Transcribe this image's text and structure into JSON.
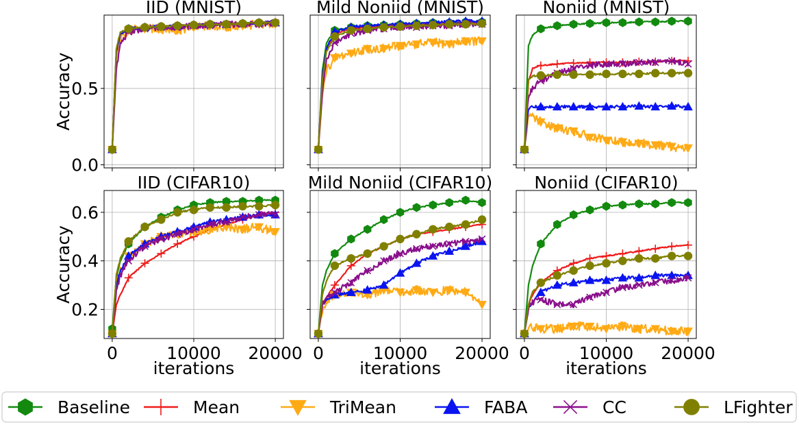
{
  "figure": {
    "legend": [
      {
        "name": "Baseline",
        "color": "#138a0f",
        "marker": "hexagon"
      },
      {
        "name": "Mean",
        "color": "#ee1b1b",
        "marker": "plus"
      },
      {
        "name": "TriMean",
        "color": "#ffaa15",
        "marker": "triangle-down"
      },
      {
        "name": "FABA",
        "color": "#0a14f0",
        "marker": "triangle-up"
      },
      {
        "name": "CC",
        "color": "#8a0f8c",
        "marker": "x"
      },
      {
        "name": "LFighter",
        "color": "#808000",
        "marker": "circle"
      }
    ]
  },
  "chart_data": [
    {
      "type": "line",
      "title": "IID (MNIST)",
      "xlabel": "",
      "ylabel": "Accuracy",
      "xlim": [
        -1000,
        21000
      ],
      "ylim": [
        -0.02,
        0.98
      ],
      "xticks": [
        0,
        10000,
        20000
      ],
      "xticklabels": [
        "",
        "",
        ""
      ],
      "yticks": [
        0.0,
        0.5
      ],
      "yticklabels": [
        "0.0",
        "0.5"
      ],
      "x": [
        0,
        500,
        1000,
        2000,
        4000,
        6000,
        8000,
        10000,
        12000,
        14000,
        16000,
        18000,
        20000
      ],
      "series": [
        {
          "name": "Baseline",
          "values": [
            0.1,
            0.75,
            0.86,
            0.89,
            0.9,
            0.905,
            0.91,
            0.915,
            0.92,
            0.92,
            0.925,
            0.93,
            0.93
          ]
        },
        {
          "name": "Mean",
          "values": [
            0.1,
            0.74,
            0.85,
            0.89,
            0.9,
            0.905,
            0.91,
            0.915,
            0.92,
            0.92,
            0.925,
            0.925,
            0.93
          ]
        },
        {
          "name": "TriMean",
          "values": [
            0.1,
            0.7,
            0.83,
            0.88,
            0.89,
            0.89,
            0.88,
            0.9,
            0.91,
            0.9,
            0.91,
            0.92,
            0.92
          ]
        },
        {
          "name": "FABA",
          "values": [
            0.1,
            0.74,
            0.85,
            0.89,
            0.9,
            0.905,
            0.91,
            0.915,
            0.92,
            0.92,
            0.925,
            0.93,
            0.93
          ]
        },
        {
          "name": "CC",
          "values": [
            0.1,
            0.62,
            0.79,
            0.87,
            0.89,
            0.9,
            0.9,
            0.91,
            0.91,
            0.92,
            0.92,
            0.92,
            0.93
          ]
        },
        {
          "name": "LFighter",
          "values": [
            0.1,
            0.76,
            0.87,
            0.89,
            0.9,
            0.905,
            0.91,
            0.915,
            0.92,
            0.92,
            0.925,
            0.93,
            0.93
          ]
        }
      ]
    },
    {
      "type": "line",
      "title": "Mild Noniid (MNIST)",
      "xlabel": "",
      "ylabel": "",
      "xlim": [
        -1000,
        21000
      ],
      "ylim": [
        -0.02,
        0.98
      ],
      "xticks": [
        0,
        10000,
        20000
      ],
      "xticklabels": [
        "",
        "",
        ""
      ],
      "yticks": [
        0.0,
        0.5
      ],
      "yticklabels": [
        "",
        ""
      ],
      "x": [
        0,
        500,
        1000,
        2000,
        4000,
        6000,
        8000,
        10000,
        12000,
        14000,
        16000,
        18000,
        20000
      ],
      "series": [
        {
          "name": "Baseline",
          "values": [
            0.1,
            0.62,
            0.8,
            0.88,
            0.9,
            0.91,
            0.915,
            0.92,
            0.925,
            0.93,
            0.93,
            0.935,
            0.935
          ]
        },
        {
          "name": "Mean",
          "values": [
            0.1,
            0.58,
            0.76,
            0.86,
            0.89,
            0.9,
            0.905,
            0.91,
            0.915,
            0.92,
            0.92,
            0.925,
            0.93
          ]
        },
        {
          "name": "TriMean",
          "values": [
            0.1,
            0.45,
            0.62,
            0.7,
            0.73,
            0.76,
            0.76,
            0.78,
            0.79,
            0.8,
            0.79,
            0.81,
            0.81
          ]
        },
        {
          "name": "FABA",
          "values": [
            0.1,
            0.58,
            0.76,
            0.87,
            0.9,
            0.91,
            0.915,
            0.92,
            0.925,
            0.93,
            0.935,
            0.94,
            0.94
          ]
        },
        {
          "name": "CC",
          "values": [
            0.1,
            0.48,
            0.68,
            0.8,
            0.86,
            0.88,
            0.89,
            0.9,
            0.9,
            0.91,
            0.91,
            0.92,
            0.92
          ]
        },
        {
          "name": "LFighter",
          "values": [
            0.1,
            0.56,
            0.74,
            0.84,
            0.88,
            0.89,
            0.9,
            0.905,
            0.91,
            0.915,
            0.92,
            0.92,
            0.925
          ]
        }
      ]
    },
    {
      "type": "line",
      "title": "Noniid (MNIST)",
      "xlabel": "",
      "ylabel": "",
      "xlim": [
        -1000,
        21000
      ],
      "ylim": [
        -0.02,
        0.98
      ],
      "xticks": [
        0,
        10000,
        20000
      ],
      "xticklabels": [
        "",
        "",
        ""
      ],
      "yticks": [
        0.0,
        0.5
      ],
      "yticklabels": [
        "",
        ""
      ],
      "x": [
        0,
        500,
        1000,
        2000,
        4000,
        6000,
        8000,
        10000,
        12000,
        14000,
        16000,
        18000,
        20000
      ],
      "series": [
        {
          "name": "Baseline",
          "values": [
            0.1,
            0.78,
            0.85,
            0.89,
            0.91,
            0.92,
            0.925,
            0.93,
            0.93,
            0.935,
            0.935,
            0.94,
            0.94
          ]
        },
        {
          "name": "Mean",
          "values": [
            0.1,
            0.55,
            0.63,
            0.65,
            0.66,
            0.665,
            0.67,
            0.67,
            0.67,
            0.675,
            0.675,
            0.68,
            0.68
          ]
        },
        {
          "name": "TriMean",
          "values": [
            0.1,
            0.3,
            0.32,
            0.28,
            0.24,
            0.22,
            0.18,
            0.16,
            0.15,
            0.14,
            0.13,
            0.12,
            0.11
          ]
        },
        {
          "name": "FABA",
          "values": [
            0.1,
            0.37,
            0.38,
            0.38,
            0.38,
            0.38,
            0.38,
            0.38,
            0.38,
            0.385,
            0.38,
            0.385,
            0.38
          ]
        },
        {
          "name": "CC",
          "values": [
            0.1,
            0.45,
            0.5,
            0.55,
            0.6,
            0.63,
            0.65,
            0.66,
            0.66,
            0.67,
            0.67,
            0.68,
            0.66
          ]
        },
        {
          "name": "LFighter",
          "values": [
            0.1,
            0.56,
            0.58,
            0.585,
            0.59,
            0.59,
            0.59,
            0.595,
            0.595,
            0.595,
            0.6,
            0.6,
            0.6
          ]
        }
      ]
    },
    {
      "type": "line",
      "title": "IID (CIFAR10)",
      "xlabel": "iterations",
      "ylabel": "Accuracy",
      "xlim": [
        -1000,
        21000
      ],
      "ylim": [
        0.08,
        0.69
      ],
      "xticks": [
        0,
        10000,
        20000
      ],
      "xticklabels": [
        "0",
        "10000",
        "20000"
      ],
      "yticks": [
        0.2,
        0.4,
        0.6
      ],
      "yticklabels": [
        "0.2",
        "0.4",
        "0.6"
      ],
      "x": [
        0,
        500,
        1000,
        2000,
        4000,
        6000,
        8000,
        10000,
        12000,
        14000,
        16000,
        18000,
        20000
      ],
      "series": [
        {
          "name": "Baseline",
          "values": [
            0.12,
            0.33,
            0.4,
            0.47,
            0.54,
            0.58,
            0.61,
            0.63,
            0.64,
            0.645,
            0.645,
            0.65,
            0.65
          ]
        },
        {
          "name": "Mean",
          "values": [
            0.1,
            0.22,
            0.26,
            0.33,
            0.39,
            0.43,
            0.47,
            0.5,
            0.53,
            0.55,
            0.57,
            0.59,
            0.6
          ]
        },
        {
          "name": "TriMean",
          "values": [
            0.1,
            0.3,
            0.36,
            0.42,
            0.47,
            0.5,
            0.51,
            0.52,
            0.53,
            0.54,
            0.53,
            0.54,
            0.52
          ]
        },
        {
          "name": "FABA",
          "values": [
            0.1,
            0.3,
            0.36,
            0.42,
            0.47,
            0.5,
            0.52,
            0.54,
            0.56,
            0.57,
            0.58,
            0.59,
            0.59
          ]
        },
        {
          "name": "CC",
          "values": [
            0.1,
            0.28,
            0.34,
            0.4,
            0.46,
            0.49,
            0.51,
            0.53,
            0.55,
            0.56,
            0.58,
            0.59,
            0.59
          ]
        },
        {
          "name": "LFighter",
          "values": [
            0.1,
            0.34,
            0.41,
            0.48,
            0.54,
            0.57,
            0.6,
            0.61,
            0.62,
            0.62,
            0.625,
            0.625,
            0.63
          ]
        }
      ]
    },
    {
      "type": "line",
      "title": "Mild Noniid (CIFAR10)",
      "xlabel": "iterations",
      "ylabel": "",
      "xlim": [
        -1000,
        21000
      ],
      "ylim": [
        0.08,
        0.69
      ],
      "xticks": [
        0,
        10000,
        20000
      ],
      "xticklabels": [
        "0",
        "10000",
        "20000"
      ],
      "yticks": [
        0.2,
        0.4,
        0.6
      ],
      "yticklabels": [
        "",
        "",
        ""
      ],
      "x": [
        0,
        500,
        1000,
        2000,
        4000,
        6000,
        8000,
        10000,
        12000,
        14000,
        16000,
        18000,
        20000
      ],
      "series": [
        {
          "name": "Baseline",
          "values": [
            0.1,
            0.3,
            0.36,
            0.43,
            0.49,
            0.53,
            0.57,
            0.6,
            0.62,
            0.63,
            0.64,
            0.65,
            0.64
          ]
        },
        {
          "name": "Mean",
          "values": [
            0.1,
            0.22,
            0.25,
            0.3,
            0.38,
            0.43,
            0.46,
            0.49,
            0.51,
            0.52,
            0.53,
            0.54,
            0.55
          ]
        },
        {
          "name": "TriMean",
          "values": [
            0.1,
            0.2,
            0.24,
            0.26,
            0.27,
            0.26,
            0.28,
            0.27,
            0.28,
            0.27,
            0.28,
            0.27,
            0.22
          ]
        },
        {
          "name": "FABA",
          "values": [
            0.1,
            0.22,
            0.24,
            0.26,
            0.27,
            0.28,
            0.3,
            0.35,
            0.39,
            0.42,
            0.44,
            0.46,
            0.48
          ]
        },
        {
          "name": "CC",
          "values": [
            0.1,
            0.22,
            0.25,
            0.27,
            0.31,
            0.36,
            0.4,
            0.43,
            0.45,
            0.46,
            0.47,
            0.48,
            0.49
          ]
        },
        {
          "name": "LFighter",
          "values": [
            0.1,
            0.26,
            0.32,
            0.38,
            0.41,
            0.43,
            0.46,
            0.49,
            0.51,
            0.53,
            0.54,
            0.55,
            0.57
          ]
        }
      ]
    },
    {
      "type": "line",
      "title": "Noniid (CIFAR10)",
      "xlabel": "iterations",
      "ylabel": "",
      "xlim": [
        -1000,
        21000
      ],
      "ylim": [
        0.08,
        0.69
      ],
      "xticks": [
        0,
        10000,
        20000
      ],
      "xticklabels": [
        "0",
        "10000",
        "20000"
      ],
      "yticks": [
        0.2,
        0.4,
        0.6
      ],
      "yticklabels": [
        "",
        "",
        ""
      ],
      "x": [
        0,
        500,
        1000,
        2000,
        4000,
        6000,
        8000,
        10000,
        12000,
        14000,
        16000,
        18000,
        20000
      ],
      "series": [
        {
          "name": "Baseline",
          "values": [
            0.1,
            0.3,
            0.38,
            0.47,
            0.55,
            0.59,
            0.61,
            0.625,
            0.63,
            0.635,
            0.635,
            0.64,
            0.64
          ]
        },
        {
          "name": "Mean",
          "values": [
            0.1,
            0.22,
            0.26,
            0.31,
            0.36,
            0.39,
            0.41,
            0.42,
            0.43,
            0.44,
            0.45,
            0.46,
            0.465
          ]
        },
        {
          "name": "TriMean",
          "values": [
            0.1,
            0.12,
            0.13,
            0.12,
            0.12,
            0.13,
            0.13,
            0.12,
            0.13,
            0.12,
            0.12,
            0.11,
            0.11
          ]
        },
        {
          "name": "FABA",
          "values": [
            0.1,
            0.2,
            0.23,
            0.27,
            0.3,
            0.31,
            0.32,
            0.32,
            0.33,
            0.33,
            0.34,
            0.34,
            0.34
          ]
        },
        {
          "name": "CC",
          "values": [
            0.1,
            0.21,
            0.23,
            0.24,
            0.22,
            0.22,
            0.25,
            0.27,
            0.29,
            0.3,
            0.31,
            0.32,
            0.33
          ]
        },
        {
          "name": "LFighter",
          "values": [
            0.1,
            0.22,
            0.27,
            0.31,
            0.34,
            0.36,
            0.38,
            0.39,
            0.4,
            0.41,
            0.41,
            0.42,
            0.42
          ]
        }
      ]
    }
  ]
}
